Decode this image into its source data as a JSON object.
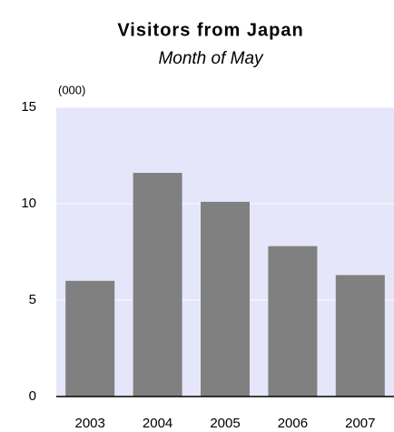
{
  "chart_data": {
    "type": "bar",
    "title": "Visitors from Japan",
    "subtitle": "Month of May",
    "y_unit_label": "(000)",
    "categories": [
      "2003",
      "2004",
      "2005",
      "2006",
      "2007"
    ],
    "values": [
      6.0,
      11.6,
      10.1,
      7.8,
      6.3
    ],
    "color": "#808080",
    "ylim": [
      0,
      15
    ],
    "yticks": [
      0,
      5,
      10,
      15
    ],
    "grid": true,
    "plot_background": "#e6e6fa"
  }
}
